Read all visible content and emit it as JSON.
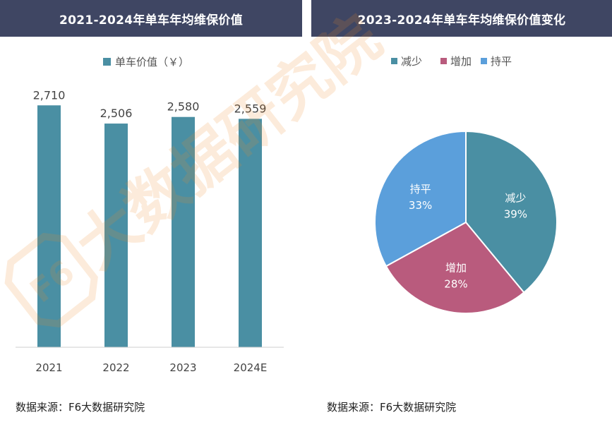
{
  "left_panel": {
    "title": "2021-2024年单车年均维保价值",
    "source": "数据来源：F6大数据研究院"
  },
  "right_panel": {
    "title": "2023-2024年单车年均维保价值变化",
    "source": "数据来源：F6大数据研究院"
  },
  "watermark": {
    "text": "大数据研究院",
    "logo": "F6"
  },
  "chart_data": [
    {
      "type": "bar",
      "categories": [
        "2021",
        "2022",
        "2023",
        "2024E"
      ],
      "series": [
        {
          "name": "单车价值（￥）",
          "values": [
            2710,
            2506,
            2580,
            2559
          ],
          "labels": [
            "2,710",
            "2,506",
            "2,580",
            "2,559"
          ]
        }
      ],
      "ylim": [
        0,
        3400
      ],
      "color": "#4a8fa3",
      "legend_position": "top"
    },
    {
      "type": "pie",
      "slices": [
        {
          "name": "减少",
          "value": 39,
          "label": "39%",
          "color": "#4a8fa3"
        },
        {
          "name": "增加",
          "value": 28,
          "label": "28%",
          "color": "#b95b7d"
        },
        {
          "name": "持平",
          "value": 33,
          "label": "33%",
          "color": "#5b9fdb"
        }
      ],
      "legend_position": "top"
    }
  ]
}
